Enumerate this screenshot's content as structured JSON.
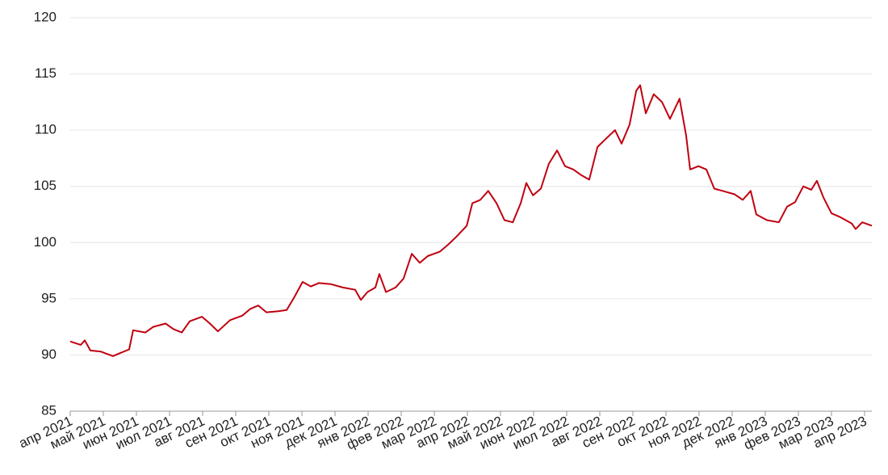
{
  "chart_data": {
    "type": "line",
    "x": [
      0,
      0.32,
      0.44,
      0.61,
      0.93,
      1.29,
      1.54,
      1.78,
      1.9,
      2.27,
      2.51,
      2.88,
      3.12,
      3.37,
      3.61,
      3.98,
      4.22,
      4.46,
      4.83,
      5.2,
      5.44,
      5.68,
      5.93,
      6.29,
      6.54,
      6.78,
      7.02,
      7.27,
      7.51,
      7.88,
      8.24,
      8.61,
      8.78,
      8.98,
      9.22,
      9.34,
      9.54,
      9.83,
      10.07,
      10.32,
      10.56,
      10.8,
      11.17,
      11.41,
      11.66,
      11.98,
      12.15,
      12.39,
      12.63,
      12.88,
      13.12,
      13.37,
      13.61,
      13.78,
      13.98,
      14.22,
      14.46,
      14.71,
      14.95,
      15.2,
      15.44,
      15.68,
      15.93,
      16.17,
      16.46,
      16.66,
      16.9,
      17.1,
      17.22,
      17.39,
      17.63,
      17.88,
      18.12,
      18.41,
      18.61,
      18.73,
      18.98,
      19.22,
      19.46,
      19.71,
      20.07,
      20.32,
      20.56,
      20.73,
      21.05,
      21.41,
      21.66,
      21.9,
      22.15,
      22.39,
      22.56,
      22.76,
      23.0,
      23.24,
      23.61,
      23.73,
      23.93,
      24.22
    ],
    "series": [
      {
        "color": "#c00010",
        "values": [
          91.2,
          90.9,
          91.3,
          90.4,
          90.3,
          89.9,
          90.2,
          90.5,
          92.2,
          92.0,
          92.5,
          92.8,
          92.3,
          92.0,
          93.0,
          93.4,
          92.8,
          92.1,
          93.1,
          93.5,
          94.1,
          94.4,
          93.8,
          93.9,
          94.0,
          95.2,
          96.5,
          96.1,
          96.4,
          96.3,
          96.0,
          95.8,
          94.9,
          95.6,
          96.0,
          97.2,
          95.6,
          96.0,
          96.8,
          99.0,
          98.2,
          98.8,
          99.2,
          99.8,
          100.5,
          101.5,
          103.5,
          103.8,
          104.6,
          103.5,
          102.0,
          101.8,
          103.5,
          105.3,
          104.2,
          104.8,
          107.0,
          108.2,
          106.8,
          106.5,
          106.0,
          105.6,
          108.5,
          109.2,
          110.0,
          108.8,
          110.5,
          113.5,
          114.0,
          111.5,
          113.2,
          112.5,
          111.0,
          112.8,
          109.5,
          106.5,
          106.8,
          106.5,
          104.8,
          104.6,
          104.3,
          103.8,
          104.6,
          102.5,
          102.0,
          101.8,
          103.2,
          103.6,
          105.0,
          104.7,
          105.5,
          104.0,
          102.6,
          102.3,
          101.7,
          101.2,
          101.8,
          101.5
        ]
      }
    ],
    "xlim": [
      0,
      24.22
    ],
    "xticks": [
      {
        "value": 0,
        "label": "апр 2021"
      },
      {
        "value": 1,
        "label": "май 2021"
      },
      {
        "value": 2,
        "label": "июн 2021"
      },
      {
        "value": 3,
        "label": "июл 2021"
      },
      {
        "value": 4,
        "label": "авг 2021"
      },
      {
        "value": 5,
        "label": "сен 2021"
      },
      {
        "value": 6,
        "label": "окт 2021"
      },
      {
        "value": 7,
        "label": "ноя 2021"
      },
      {
        "value": 8,
        "label": "дек 2021"
      },
      {
        "value": 9,
        "label": "янв 2022"
      },
      {
        "value": 10,
        "label": "фев 2022"
      },
      {
        "value": 11,
        "label": "мар 2022"
      },
      {
        "value": 12,
        "label": "апр 2022"
      },
      {
        "value": 13,
        "label": "май 2022"
      },
      {
        "value": 14,
        "label": "июн 2022"
      },
      {
        "value": 15,
        "label": "июл 2022"
      },
      {
        "value": 16,
        "label": "авг 2022"
      },
      {
        "value": 17,
        "label": "сен 2022"
      },
      {
        "value": 18,
        "label": "окт 2022"
      },
      {
        "value": 19,
        "label": "ноя 2022"
      },
      {
        "value": 20,
        "label": "дек 2022"
      },
      {
        "value": 21,
        "label": "янв 2023"
      },
      {
        "value": 22,
        "label": "фев 2023"
      },
      {
        "value": 23,
        "label": "мар 2023"
      },
      {
        "value": 24,
        "label": "апр 2023"
      }
    ],
    "ylim": [
      85,
      120
    ],
    "yticks": [
      85,
      90,
      95,
      100,
      105,
      110,
      115,
      120
    ],
    "grid": true
  }
}
